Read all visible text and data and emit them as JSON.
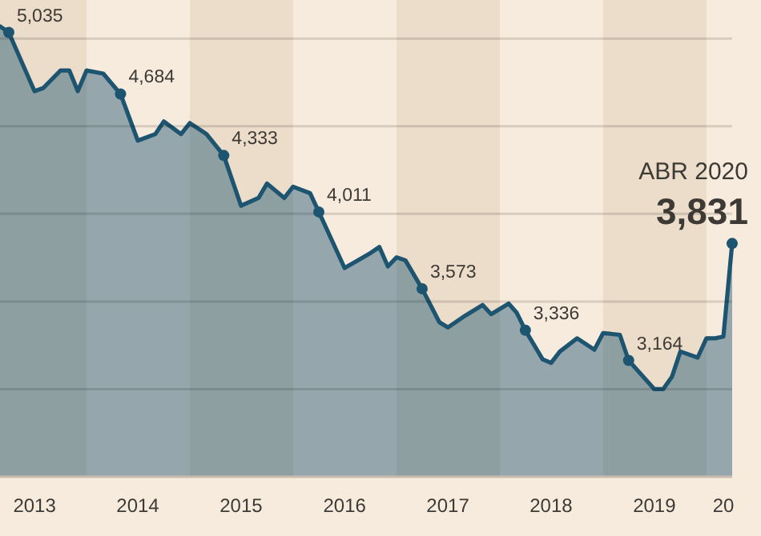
{
  "chart_data": {
    "type": "area",
    "x": [
      "2013-03",
      "2013-04",
      "2013-07",
      "2013-08",
      "2013-10",
      "2013-11",
      "2013-12",
      "2014-01",
      "2014-03",
      "2014-05",
      "2014-07",
      "2014-09",
      "2014-10",
      "2014-12",
      "2015-01",
      "2015-03",
      "2015-05",
      "2015-07",
      "2015-09",
      "2015-10",
      "2015-12",
      "2016-01",
      "2016-03",
      "2016-04",
      "2016-07",
      "2016-10",
      "2016-11",
      "2016-12",
      "2017-01",
      "2017-02",
      "2017-04",
      "2017-06",
      "2017-07",
      "2017-09",
      "2017-11",
      "2017-12",
      "2018-02",
      "2018-03",
      "2018-04",
      "2018-06",
      "2018-07",
      "2018-08",
      "2018-10",
      "2018-12",
      "2019-01",
      "2019-03",
      "2019-04",
      "2019-07",
      "2019-08",
      "2019-09",
      "2019-10",
      "2019-12",
      "2020-01",
      "2020-02",
      "2020-03",
      "2020-04"
    ],
    "series": [
      {
        "color": "#1d5470",
        "values": [
          5070,
          5035,
          4700,
          4718,
          4818,
          4818,
          4700,
          4818,
          4800,
          4684,
          4418,
          4455,
          4527,
          4455,
          4518,
          4455,
          4333,
          4046,
          4091,
          4173,
          4091,
          4155,
          4118,
          4011,
          3691,
          3777,
          3811,
          3700,
          3752,
          3735,
          3573,
          3382,
          3352,
          3420,
          3480,
          3428,
          3488,
          3437,
          3336,
          3170,
          3150,
          3215,
          3290,
          3225,
          3320,
          3310,
          3164,
          3000,
          3000,
          3070,
          3215,
          3180,
          3290,
          3290,
          3300,
          3831
        ],
        "value_labels": [
          null,
          "5,035",
          null,
          null,
          null,
          null,
          null,
          null,
          null,
          "4,684",
          null,
          null,
          null,
          null,
          null,
          null,
          "4,333",
          null,
          null,
          null,
          null,
          null,
          null,
          "4,011",
          null,
          null,
          null,
          null,
          null,
          null,
          "3,573",
          null,
          null,
          null,
          null,
          null,
          null,
          null,
          "3,336",
          null,
          null,
          null,
          null,
          null,
          null,
          null,
          "3,164",
          null,
          null,
          null,
          null,
          null,
          null,
          null,
          null,
          "3,831"
        ]
      }
    ],
    "xlim": [
      "2013-03",
      "2020-04"
    ],
    "xticks": [
      {
        "value": "2013-07",
        "label": "2013"
      },
      {
        "value": "2014-07",
        "label": "2014"
      },
      {
        "value": "2015-07",
        "label": "2015"
      },
      {
        "value": "2016-07",
        "label": "2016"
      },
      {
        "value": "2017-07",
        "label": "2017"
      },
      {
        "value": "2018-07",
        "label": "2018"
      },
      {
        "value": "2019-07",
        "label": "2019"
      },
      {
        "value": "2020-03",
        "label": "20"
      }
    ],
    "ylim": [
      2500,
      5220
    ],
    "yticks": [
      {
        "value": 5000,
        "label": null
      },
      {
        "value": 4500,
        "label": null
      },
      {
        "value": 4000,
        "label": null
      },
      {
        "value": 3500,
        "label": null
      },
      {
        "value": 3000,
        "label": null
      }
    ],
    "grid": "y",
    "bands": [
      {
        "axis": "x",
        "from": "2013-03",
        "to": "2014-01",
        "color": "#ecdcca"
      },
      {
        "axis": "x",
        "from": "2015-01",
        "to": "2016-01",
        "color": "#ecdcca"
      },
      {
        "axis": "x",
        "from": "2017-01",
        "to": "2018-01",
        "color": "#ecdcca"
      },
      {
        "axis": "x",
        "from": "2019-01",
        "to": "2020-01",
        "color": "#ecdcca"
      }
    ],
    "annotations": [
      {
        "text": "ABR 2020",
        "x": "2020-04",
        "y": 3831
      }
    ]
  }
}
